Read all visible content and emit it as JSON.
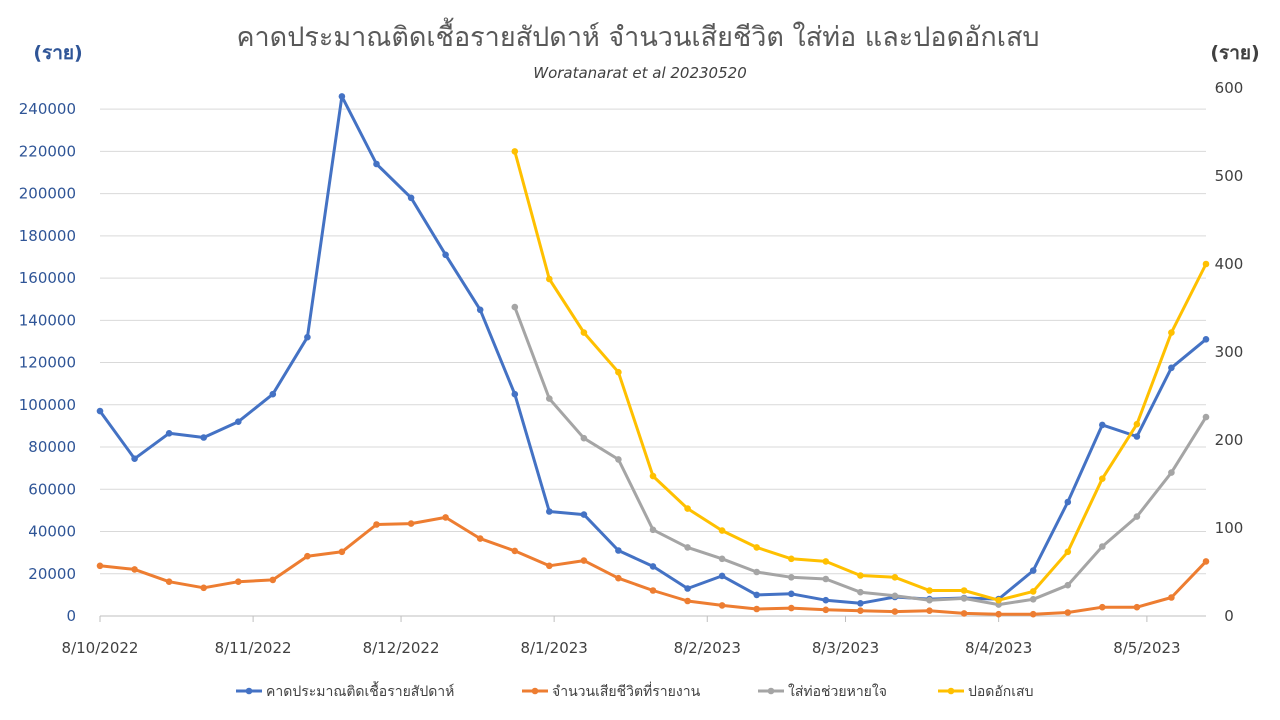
{
  "chart_data": {
    "type": "line",
    "title": "คาดประมาณติดเชื้อรายสัปดาห์ จำนวนเสียชีวิต ใส่ท่อ และปอดอักเสบ",
    "subtitle": "Woratanarat et al 20230520",
    "y_left_unit": "(ราย)",
    "y_right_unit": "(ราย)",
    "y_left_ticks": [
      "0",
      "20000",
      "40000",
      "60000",
      "80000",
      "100000",
      "120000",
      "140000",
      "160000",
      "180000",
      "200000",
      "220000",
      "240000"
    ],
    "y_right_ticks": [
      "0",
      "100",
      "200",
      "300",
      "400",
      "500",
      "600"
    ],
    "y_left_range": [
      0,
      250000
    ],
    "y_right_range": [
      0,
      600
    ],
    "x_labels": [
      {
        "label": "8/10/2022",
        "index": 0
      },
      {
        "label": "8/11/2022",
        "index": 4.43
      },
      {
        "label": "8/12/2022",
        "index": 8.71
      },
      {
        "label": "8/1/2023",
        "index": 13.14
      },
      {
        "label": "8/2/2023",
        "index": 17.57
      },
      {
        "label": "8/3/2023",
        "index": 21.57
      },
      {
        "label": "8/4/2023",
        "index": 26
      },
      {
        "label": "8/5/2023",
        "index": 30.29
      }
    ],
    "point_count": 33,
    "legend_position": "bottom",
    "grid": true,
    "series": [
      {
        "name": "คาดประมาณติดเชื้อรายสัปดาห์",
        "axis": "left",
        "color": "#4472c4",
        "start_index": 0,
        "values": [
          97000,
          74500,
          86500,
          84500,
          92000,
          105000,
          132000,
          246000,
          214000,
          198000,
          171000,
          145000,
          105000,
          49500,
          48000,
          31000,
          23500,
          13000,
          19000,
          10000,
          10500,
          7500,
          6000,
          9000,
          8000,
          8500,
          8000,
          21500,
          54000,
          90500,
          85000,
          117500,
          131000
        ]
      },
      {
        "name": "จำนวนเสียชีวิตที่รายงาน",
        "axis": "right",
        "color": "#ed7d31",
        "start_index": 0,
        "values": [
          57,
          53,
          39,
          32,
          39,
          41,
          68,
          73,
          104,
          105,
          112,
          88,
          74,
          57,
          63,
          43,
          29,
          17,
          12,
          8,
          9,
          7,
          6,
          5,
          6,
          3,
          2,
          2,
          4,
          10,
          10,
          21,
          62
        ]
      },
      {
        "name": "ใส่ท่อช่วยหายใจ",
        "axis": "right",
        "color": "#a5a5a5",
        "start_index": 12,
        "values": [
          351,
          247,
          202,
          178,
          98,
          78,
          65,
          50,
          44,
          42,
          27,
          23,
          18,
          20,
          13,
          19,
          35,
          79,
          113,
          163,
          226
        ]
      },
      {
        "name": "ปอดอักเสบ",
        "axis": "right",
        "color": "#ffc000",
        "start_index": 12,
        "values": [
          528,
          383,
          322,
          277,
          159,
          122,
          97,
          78,
          65,
          62,
          46,
          44,
          29,
          29,
          18,
          28,
          73,
          156,
          218,
          322,
          400
        ]
      }
    ]
  }
}
